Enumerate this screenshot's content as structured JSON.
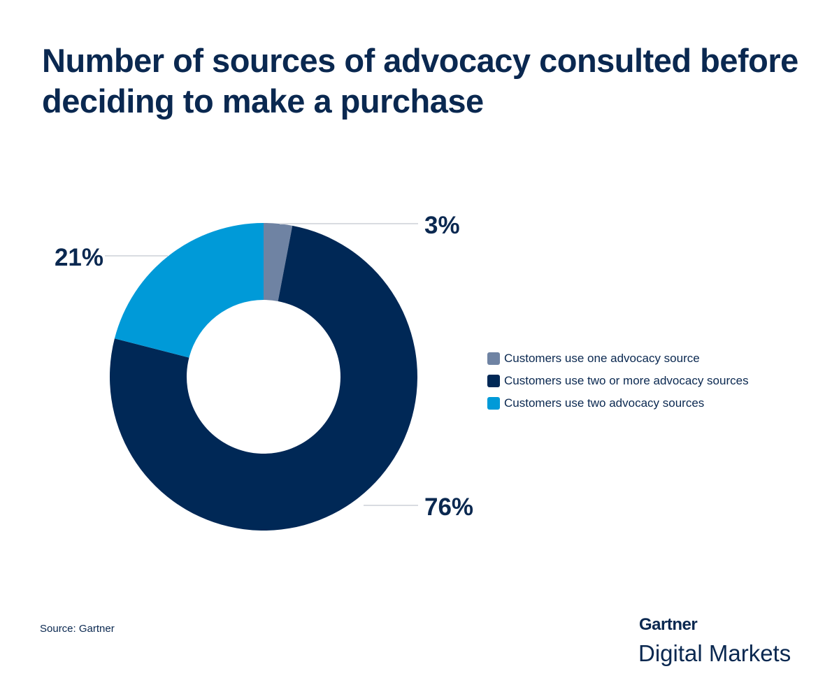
{
  "chart_data": {
    "type": "pie",
    "variant": "donut",
    "title": "Number of sources of advocacy consulted before deciding to make a purchase",
    "categories": [
      "Customers use one advocacy source",
      "Customers use two or more advocacy sources",
      "Customers use two advocacy sources"
    ],
    "values": [
      3,
      76,
      21
    ],
    "labels": [
      "3%",
      "76%",
      "21%"
    ],
    "colors": [
      "#6f83a3",
      "#002856",
      "#009ad8"
    ],
    "legend_position": "right"
  },
  "footer": {
    "source": "Source: Gartner",
    "logo_line1": "Gartner",
    "logo_line2": "Digital Markets"
  }
}
